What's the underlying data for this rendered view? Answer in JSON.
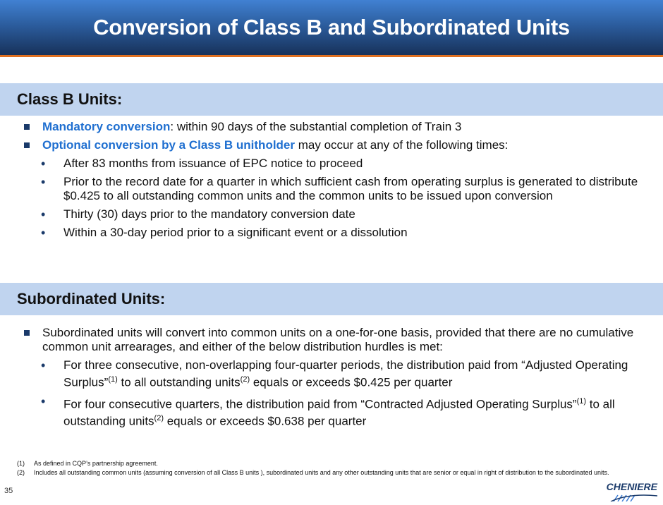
{
  "title": "Conversion of Class B and Subordinated Units",
  "class_b": {
    "header": "Class B Units:",
    "item1": {
      "highlight": "Mandatory conversion",
      "rest": ": within 90 days of the substantial completion of Train 3"
    },
    "item2": {
      "highlight": "Optional conversion by a Class B unitholder",
      "rest": " may occur at any of the following times:"
    },
    "subitems": [
      "After 83 months from issuance of EPC notice to proceed",
      "Prior to the record date for a quarter in which sufficient cash from operating surplus is generated to distribute $0.425 to all outstanding common units and the common units to be issued upon conversion",
      "Thirty (30) days prior to the mandatory conversion date",
      "Within a 30-day period prior to a significant event or a dissolution"
    ]
  },
  "subordinated": {
    "header": "Subordinated Units:",
    "item1": "Subordinated units will convert into common units on a one-for-one basis, provided that there are no cumulative common unit arrearages, and either of the below distribution hurdles is met:",
    "sub1": {
      "a": "For three consecutive, non-overlapping four-quarter periods, the distribution paid from “Adjusted Operating Surplus”",
      "s1": "(1)",
      "b": " to all outstanding units",
      "s2": "(2)",
      "c": " equals or exceeds $0.425 per quarter"
    },
    "sub2": {
      "a": "For four consecutive quarters, the distribution paid from “Contracted Adjusted Operating Surplus”",
      "s1": "(1)",
      "b": " to all outstanding units",
      "s2": "(2)",
      "c": " equals or exceeds $0.638 per quarter"
    }
  },
  "footnotes": [
    {
      "num": "(1)",
      "text": "As defined in CQP’s partnership agreement."
    },
    {
      "num": "(2)",
      "text": "Includes all  outstanding common units (assuming conversion of all Class B units ), subordinated units and any other outstanding units that are senior or equal in right of distribution to the subordinated units."
    }
  ],
  "page_number": "35",
  "logo_text": "CHENIERE",
  "colors": {
    "accent": "#1f6fd0",
    "band": "#c0d4ef",
    "header_orange": "#e07020"
  }
}
